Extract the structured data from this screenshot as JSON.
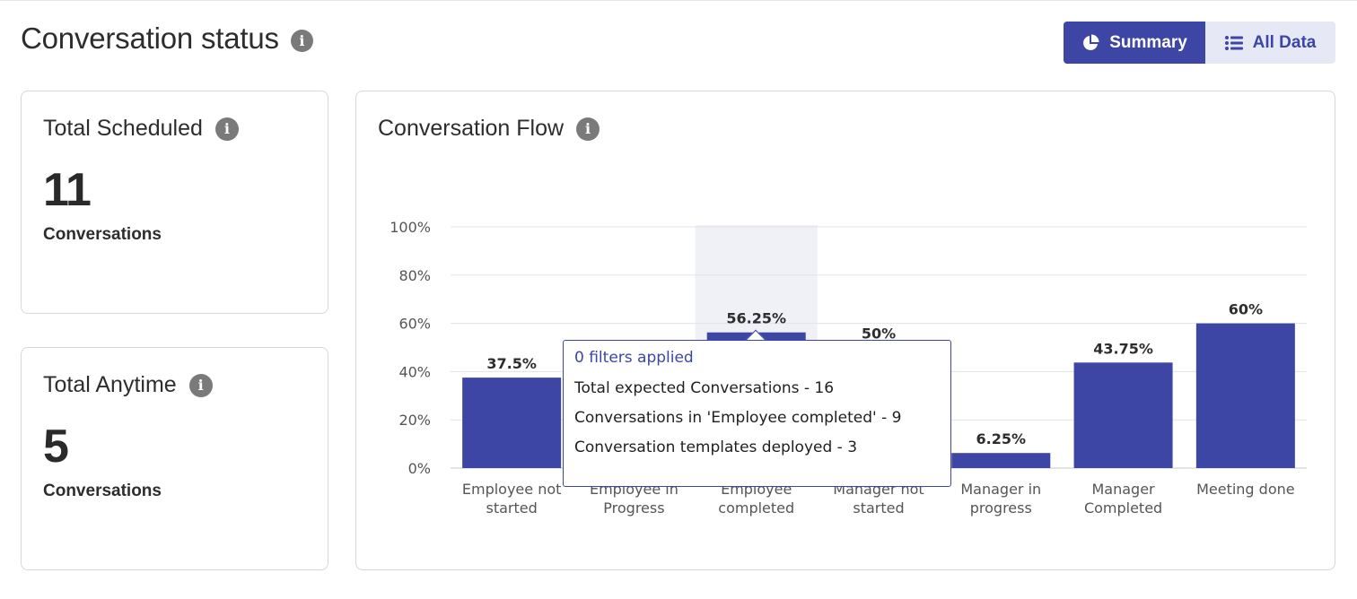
{
  "header": {
    "title": "Conversation status",
    "info_icon": "info-icon",
    "toggle": {
      "summary_label": "Summary",
      "summary_icon": "pie-chart-icon",
      "all_data_label": "All Data",
      "all_data_icon": "list-icon",
      "active": "summary"
    }
  },
  "cards": {
    "total_scheduled": {
      "title": "Total Scheduled",
      "value": "11",
      "unit": "Conversations"
    },
    "total_anytime": {
      "title": "Total Anytime",
      "value": "5",
      "unit": "Conversations"
    }
  },
  "chart": {
    "title": "Conversation Flow"
  },
  "chart_data": {
    "type": "bar",
    "title": "Conversation Flow",
    "categories": [
      [
        "Employee not",
        "started"
      ],
      [
        "Employee in",
        "Progress"
      ],
      [
        "Employee",
        "completed"
      ],
      [
        "Manager not",
        "started"
      ],
      [
        "Manager in",
        "progress"
      ],
      [
        "Manager",
        "Completed"
      ],
      [
        "Meeting done"
      ]
    ],
    "values": [
      37.5,
      0,
      56.25,
      50,
      6.25,
      43.75,
      60
    ],
    "data_labels": [
      "37.5%",
      "",
      "56.25%",
      "50%",
      "6.25%",
      "43.75%",
      "60%"
    ],
    "yticks": [
      "0%",
      "20%",
      "40%",
      "60%",
      "80%",
      "100%"
    ],
    "ylim": [
      0,
      100
    ],
    "grid": true,
    "highlighted_index": 2,
    "bar_color": "#3d46a5"
  },
  "tooltip": {
    "header": "0 filters applied",
    "lines": [
      "Total expected Conversations - 16",
      "Conversations in 'Employee completed' - 9",
      "Conversation templates deployed - 3"
    ]
  }
}
